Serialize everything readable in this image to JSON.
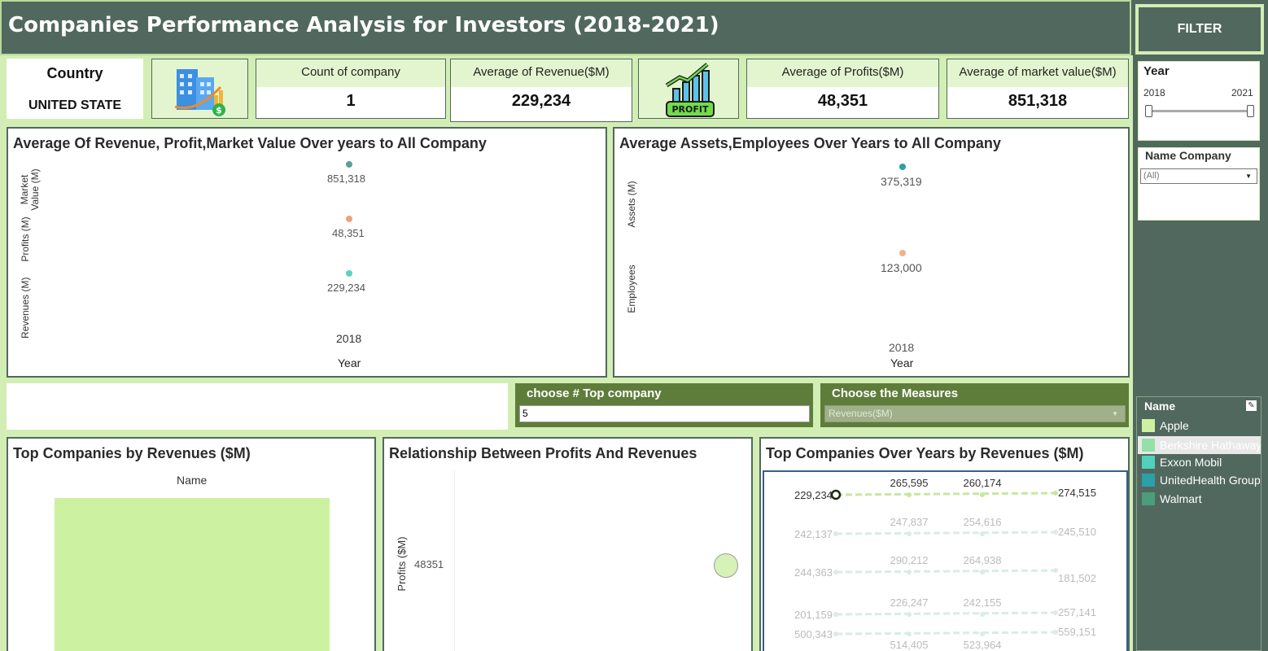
{
  "header": {
    "title": "Companies Performance Analysis for Investors  (2018-2021)"
  },
  "country_card": {
    "label": "Country",
    "value": "UNITED STATE"
  },
  "kpis": [
    {
      "label": "Count of company",
      "value": "1"
    },
    {
      "label": "Average of Revenue($M)",
      "value": "229,234"
    },
    {
      "label": "Average of Profits($M)",
      "value": "48,351"
    },
    {
      "label": "Average of market value($M)",
      "value": "851,318"
    }
  ],
  "icons": {
    "buildings": "buildings-icon",
    "profit": "profit-chart-icon",
    "profit_text": "PROFIT"
  },
  "chart1": {
    "title": "Average Of Revenue, Profit,Market Value Over years to All Company",
    "xlabel": "Year",
    "row_labels": [
      "Market Value (M)",
      "Profits (M)",
      "Revenues (M)"
    ],
    "values": [
      "851,318",
      "48,351",
      "229,234"
    ],
    "category": "2018",
    "colors": [
      "#5aa09a",
      "#f2a07a",
      "#5fd0c0"
    ]
  },
  "chart2": {
    "title": "Average Assets,Employees Over Years to All Company",
    "xlabel": "Year",
    "row_labels": [
      "Assets (M)",
      "Employees"
    ],
    "values": [
      "375,319",
      "123,000"
    ],
    "category": "2018",
    "colors": [
      "#2aa0a8",
      "#f6b08e"
    ]
  },
  "param_top": {
    "label": "choose # Top company",
    "value": "5"
  },
  "param_measure": {
    "label": "Choose the Measures",
    "value": "Revenues($M)"
  },
  "chart3": {
    "title": "Top Companies by Revenues ($M)",
    "header": "Name",
    "bar_color": "#ccf2a1"
  },
  "chart4": {
    "title": "Relationship Between Profits And Revenues",
    "ylabel": "Profits ($M)",
    "y_tick": "48351",
    "point_color": "#d6f2b8"
  },
  "chart5": {
    "title": "Top Companies Over Years by Revenues ($M)",
    "rows": [
      {
        "start": "229,234",
        "mid1": "265,595",
        "mid2": "260,174",
        "end": "274,515",
        "highlight": true
      },
      {
        "start": "242,137",
        "mid1": "247,837",
        "mid2": "254,616",
        "end": "245,510",
        "highlight": false
      },
      {
        "start": "244,363",
        "mid1": "290,212",
        "mid2": "264,938",
        "end": "181,502",
        "highlight": false
      },
      {
        "start": "201,159",
        "mid1": "226,247",
        "mid2": "242,155",
        "end": "257,141",
        "highlight": false
      },
      {
        "start": "500,343",
        "mid1": "514,405",
        "mid2": "523,964",
        "end": "559,151",
        "highlight": false
      }
    ]
  },
  "sidebar": {
    "filter_label": "FILTER",
    "year_filter": {
      "label": "Year",
      "min": "2018",
      "max": "2021"
    },
    "company_filter": {
      "label": "Name Company",
      "value": "(All)"
    },
    "legend": {
      "title": "Name",
      "items": [
        {
          "label": "Apple",
          "color": "#ccf2a1"
        },
        {
          "label": "Berkshire Hathaway",
          "color": "#93e0a8"
        },
        {
          "label": "Exxon Mobil",
          "color": "#4fd1bd"
        },
        {
          "label": "UnitedHealth Group",
          "color": "#2aa0a8"
        },
        {
          "label": "Walmart",
          "color": "#4a9e7c"
        }
      ]
    }
  }
}
